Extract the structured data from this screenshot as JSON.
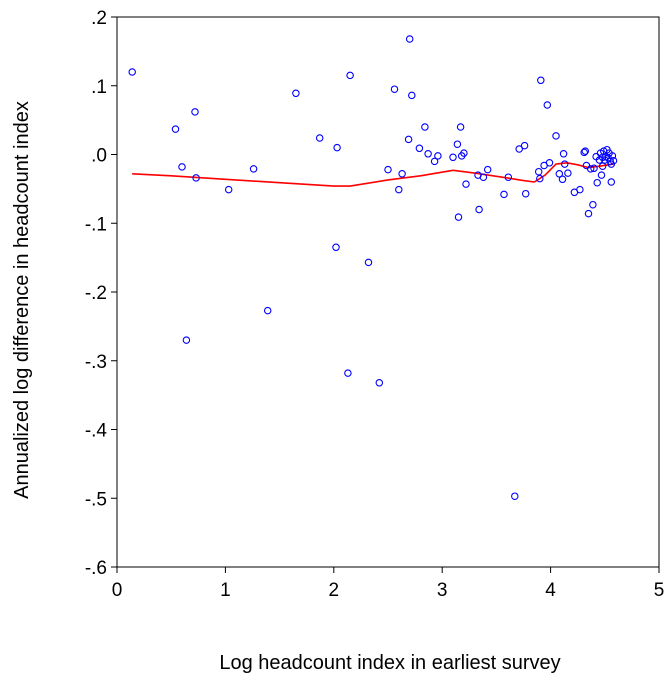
{
  "chart_data": {
    "type": "scatter",
    "title": "",
    "xlabel": "Log headcount index in earliest survey",
    "ylabel": "Annualized log difference in headcount index",
    "xlim": [
      0,
      5
    ],
    "ylim": [
      -0.6,
      0.2
    ],
    "x_ticks": [
      0,
      1,
      2,
      3,
      4,
      5
    ],
    "x_tick_labels": [
      "0",
      "1",
      "2",
      "3",
      "4",
      "5"
    ],
    "y_ticks": [
      0.2,
      0.1,
      0.0,
      -0.1,
      -0.2,
      -0.3,
      -0.4,
      -0.5,
      -0.6
    ],
    "y_tick_labels": [
      ".2",
      ".1",
      ".0",
      "-.1",
      "-.2",
      "-.3",
      "-.4",
      "-.5",
      "-.6"
    ],
    "grid": false,
    "colors": {
      "points": "#0000ff",
      "fit_line": "#ff0000",
      "axes": "#000000"
    },
    "series": [
      {
        "kind": "scatter",
        "marker": "open-circle",
        "points": [
          [
            0.14,
            0.12
          ],
          [
            0.54,
            0.037
          ],
          [
            0.6,
            -0.018
          ],
          [
            0.64,
            -0.27
          ],
          [
            0.72,
            0.062
          ],
          [
            0.73,
            -0.034
          ],
          [
            1.03,
            -0.051
          ],
          [
            1.26,
            -0.021
          ],
          [
            1.39,
            -0.227
          ],
          [
            1.65,
            0.089
          ],
          [
            1.87,
            0.024
          ],
          [
            2.03,
            0.01
          ],
          [
            2.02,
            -0.135
          ],
          [
            2.13,
            -0.318
          ],
          [
            2.15,
            0.115
          ],
          [
            2.32,
            -0.157
          ],
          [
            2.42,
            -0.332
          ],
          [
            2.5,
            -0.022
          ],
          [
            2.56,
            0.095
          ],
          [
            2.6,
            -0.051
          ],
          [
            2.63,
            -0.028
          ],
          [
            2.69,
            0.022
          ],
          [
            2.7,
            0.168
          ],
          [
            2.72,
            0.086
          ],
          [
            2.79,
            0.009
          ],
          [
            2.84,
            0.04
          ],
          [
            2.87,
            0.001
          ],
          [
            2.93,
            -0.01
          ],
          [
            2.96,
            -0.002
          ],
          [
            3.1,
            -0.004
          ],
          [
            3.14,
            0.015
          ],
          [
            3.15,
            -0.091
          ],
          [
            3.17,
            0.04
          ],
          [
            3.18,
            -0.002
          ],
          [
            3.2,
            0.002
          ],
          [
            3.22,
            -0.043
          ],
          [
            3.33,
            -0.03
          ],
          [
            3.34,
            -0.08
          ],
          [
            3.38,
            -0.033
          ],
          [
            3.42,
            -0.022
          ],
          [
            3.57,
            -0.058
          ],
          [
            3.61,
            -0.033
          ],
          [
            3.67,
            -0.497
          ],
          [
            3.71,
            0.008
          ],
          [
            3.76,
            0.013
          ],
          [
            3.77,
            -0.057
          ],
          [
            3.89,
            -0.025
          ],
          [
            3.9,
            -0.035
          ],
          [
            3.91,
            0.108
          ],
          [
            3.94,
            -0.016
          ],
          [
            3.97,
            0.072
          ],
          [
            3.99,
            -0.012
          ],
          [
            4.05,
            0.027
          ],
          [
            4.08,
            -0.028
          ],
          [
            4.11,
            -0.036
          ],
          [
            4.12,
            0.001
          ],
          [
            4.13,
            -0.014
          ],
          [
            4.16,
            -0.027
          ],
          [
            4.22,
            -0.055
          ],
          [
            4.27,
            -0.051
          ],
          [
            4.31,
            0.003
          ],
          [
            4.32,
            0.005
          ],
          [
            4.33,
            -0.016
          ],
          [
            4.35,
            -0.086
          ],
          [
            4.37,
            -0.021
          ],
          [
            4.39,
            -0.073
          ],
          [
            4.4,
            -0.02
          ],
          [
            4.42,
            -0.003
          ],
          [
            4.43,
            -0.041
          ],
          [
            4.45,
            -0.008
          ],
          [
            4.46,
            0.002
          ],
          [
            4.47,
            -0.03
          ],
          [
            4.48,
            -0.017
          ],
          [
            4.48,
            -0.004
          ],
          [
            4.49,
            0.005
          ],
          [
            4.5,
            -0.008
          ],
          [
            4.51,
            -0.003
          ],
          [
            4.52,
            0.007
          ],
          [
            4.53,
            -0.005
          ],
          [
            4.54,
            0.002
          ],
          [
            4.55,
            -0.01
          ],
          [
            4.56,
            -0.014
          ],
          [
            4.56,
            -0.04
          ],
          [
            4.57,
            -0.002
          ],
          [
            4.58,
            -0.009
          ]
        ]
      },
      {
        "kind": "line",
        "points": [
          [
            0.14,
            -0.028
          ],
          [
            0.5,
            -0.031
          ],
          [
            1.0,
            -0.036
          ],
          [
            1.5,
            -0.041
          ],
          [
            2.0,
            -0.046
          ],
          [
            2.15,
            -0.046
          ],
          [
            2.5,
            -0.037
          ],
          [
            2.8,
            -0.031
          ],
          [
            3.1,
            -0.023
          ],
          [
            3.3,
            -0.027
          ],
          [
            3.6,
            -0.034
          ],
          [
            3.75,
            -0.038
          ],
          [
            3.85,
            -0.04
          ],
          [
            3.95,
            -0.03
          ],
          [
            4.05,
            -0.014
          ],
          [
            4.15,
            -0.012
          ],
          [
            4.25,
            -0.015
          ],
          [
            4.35,
            -0.019
          ],
          [
            4.45,
            -0.017
          ],
          [
            4.58,
            -0.014
          ]
        ]
      }
    ]
  }
}
